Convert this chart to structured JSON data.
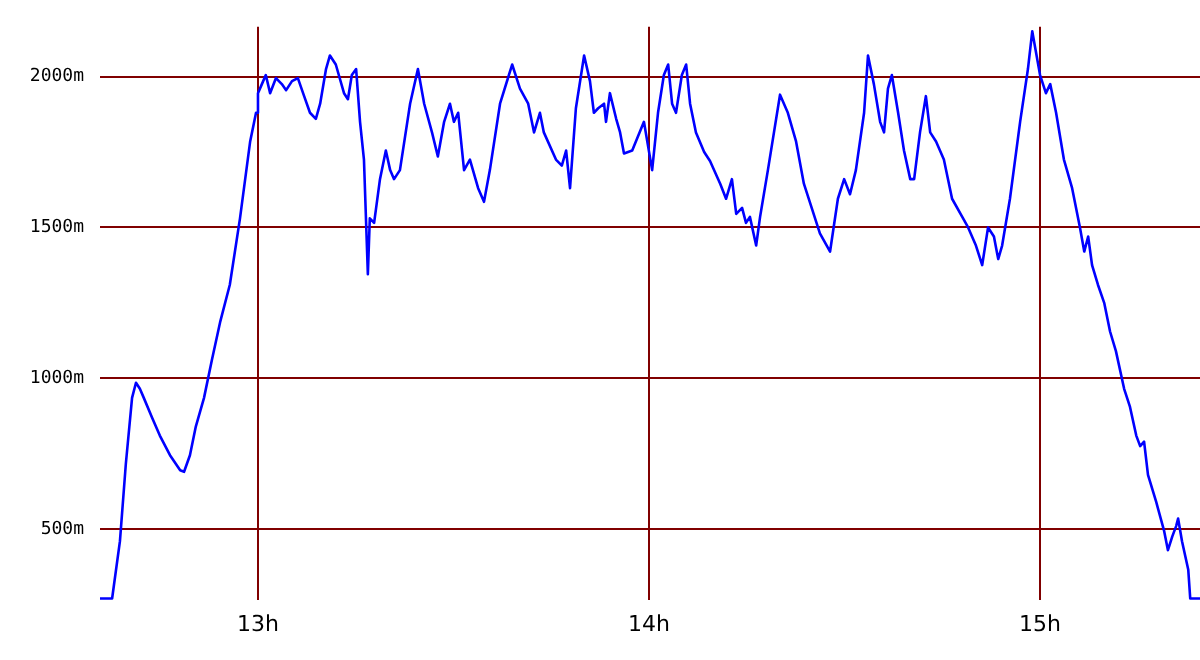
{
  "chart_data": {
    "type": "line",
    "x": [
      12.596,
      12.627,
      12.647,
      12.662,
      12.678,
      12.688,
      12.698,
      12.708,
      12.729,
      12.749,
      12.775,
      12.801,
      12.811,
      12.826,
      12.841,
      12.862,
      12.882,
      12.903,
      12.928,
      12.954,
      12.98,
      12.995,
      13.0,
      13.01,
      13.02,
      13.031,
      13.046,
      13.061,
      13.072,
      13.087,
      13.102,
      13.118,
      13.133,
      13.148,
      13.159,
      13.174,
      13.184,
      13.199,
      13.22,
      13.23,
      13.24,
      13.251,
      13.261,
      13.271,
      13.281,
      13.286,
      13.297,
      13.312,
      13.327,
      13.338,
      13.348,
      13.363,
      13.389,
      13.409,
      13.425,
      13.445,
      13.46,
      13.476,
      13.491,
      13.501,
      13.512,
      13.527,
      13.542,
      13.563,
      13.578,
      13.593,
      13.619,
      13.65,
      13.67,
      13.691,
      13.706,
      13.721,
      13.731,
      13.762,
      13.777,
      13.788,
      13.798,
      13.813,
      13.834,
      13.849,
      13.859,
      13.87,
      13.885,
      13.89,
      13.9,
      13.916,
      13.926,
      13.936,
      13.957,
      13.987,
      14.008,
      14.023,
      14.038,
      14.049,
      14.059,
      14.069,
      14.084,
      14.095,
      14.105,
      14.12,
      14.141,
      14.156,
      14.182,
      14.197,
      14.212,
      14.223,
      14.238,
      14.248,
      14.258,
      14.274,
      14.284,
      14.304,
      14.335,
      14.355,
      14.376,
      14.396,
      14.437,
      14.463,
      14.483,
      14.499,
      14.514,
      14.529,
      14.55,
      14.56,
      14.575,
      14.591,
      14.601,
      14.611,
      14.621,
      14.637,
      14.652,
      14.668,
      14.678,
      14.693,
      14.708,
      14.719,
      14.734,
      14.754,
      14.775,
      14.801,
      14.816,
      14.836,
      14.852,
      14.867,
      14.882,
      14.893,
      14.903,
      14.923,
      14.949,
      14.969,
      14.98,
      15.0,
      15.015,
      15.026,
      15.041,
      15.061,
      15.082,
      15.102,
      15.113,
      15.123,
      15.133,
      15.148,
      15.164,
      15.179,
      15.194,
      15.215,
      15.23,
      15.246,
      15.256,
      15.266,
      15.276,
      15.297,
      15.317,
      15.327,
      15.338,
      15.348,
      15.353,
      15.363,
      15.379,
      15.384,
      15.409
    ],
    "series": [
      {
        "color": "#0000ff",
        "values": [
          270,
          270,
          460,
          715,
          935,
          985,
          965,
          935,
          870,
          810,
          745,
          695,
          690,
          745,
          840,
          935,
          1060,
          1185,
          1310,
          1530,
          1785,
          1880,
          1945,
          1975,
          2005,
          1945,
          1995,
          1975,
          1955,
          1985,
          1995,
          1935,
          1880,
          1860,
          1910,
          2025,
          2070,
          2040,
          1945,
          1925,
          2005,
          2025,
          1850,
          1725,
          1345,
          1530,
          1515,
          1660,
          1755,
          1690,
          1660,
          1690,
          1910,
          2025,
          1910,
          1815,
          1735,
          1850,
          1910,
          1850,
          1880,
          1690,
          1725,
          1630,
          1585,
          1690,
          1910,
          2040,
          1960,
          1910,
          1815,
          1880,
          1815,
          1725,
          1705,
          1755,
          1630,
          1895,
          2070,
          1985,
          1880,
          1895,
          1910,
          1850,
          1945,
          1860,
          1815,
          1745,
          1755,
          1850,
          1690,
          1880,
          2005,
          2040,
          1910,
          1880,
          2005,
          2040,
          1910,
          1815,
          1750,
          1720,
          1645,
          1595,
          1660,
          1545,
          1565,
          1515,
          1535,
          1440,
          1535,
          1690,
          1940,
          1880,
          1785,
          1645,
          1480,
          1420,
          1595,
          1660,
          1610,
          1690,
          1880,
          2070,
          1975,
          1850,
          1815,
          1960,
          2005,
          1880,
          1755,
          1660,
          1660,
          1815,
          1935,
          1815,
          1785,
          1725,
          1595,
          1535,
          1500,
          1440,
          1375,
          1500,
          1470,
          1395,
          1440,
          1595,
          1850,
          2025,
          2150,
          2005,
          1945,
          1975,
          1880,
          1725,
          1630,
          1500,
          1420,
          1470,
          1375,
          1310,
          1250,
          1155,
          1090,
          965,
          905,
          810,
          775,
          790,
          680,
          590,
          495,
          430,
          475,
          510,
          535,
          460,
          365,
          270,
          270
        ]
      }
    ],
    "xlim": [
      12.596,
      15.409
    ],
    "ylim": [
      265,
      2165
    ],
    "xticks": [
      {
        "value": 13,
        "label": "13h"
      },
      {
        "value": 14,
        "label": "14h"
      },
      {
        "value": 15,
        "label": "15h"
      }
    ],
    "yticks": [
      {
        "value": 500,
        "label": "500m"
      },
      {
        "value": 1000,
        "label": "1000m"
      },
      {
        "value": 1500,
        "label": "1500m"
      },
      {
        "value": 2000,
        "label": "2000m"
      }
    ],
    "grid": true,
    "marker": "none"
  }
}
